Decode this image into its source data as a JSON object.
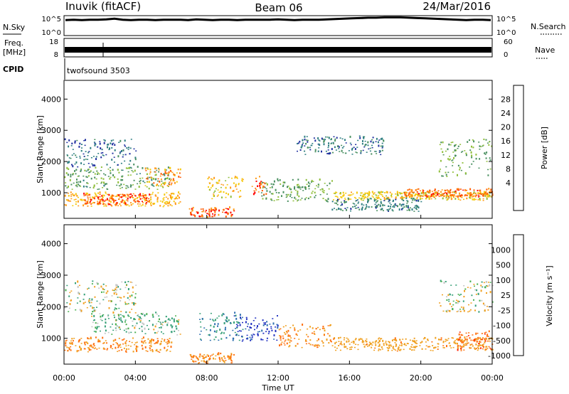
{
  "header": {
    "station": "Inuvik (fitACF)",
    "beam": "Beam 06",
    "date": "24/Mar/2016"
  },
  "nsky_panel": {
    "label": "N.Sky",
    "right_label": "N.Search",
    "left_ticks": [
      "10^5",
      "10^0"
    ],
    "right_ticks": [
      "10^5",
      "10^0"
    ],
    "trace_values": [
      4.4,
      4.5,
      4.4,
      4.5,
      4.5,
      4.6,
      4.8,
      4.5,
      4.4,
      4.5,
      4.5,
      4.4,
      4.5,
      4.5,
      4.5,
      4.4,
      4.6,
      4.5,
      4.4,
      4.5,
      4.5,
      4.4,
      4.5,
      4.5,
      4.5,
      4.5,
      4.6,
      4.5,
      4.4,
      4.5,
      4.5,
      4.5,
      4.6,
      4.7,
      4.8,
      4.9,
      5.0,
      5.1,
      5.1,
      5.2,
      5.2,
      5.2,
      5.1,
      5.0,
      4.9,
      4.8,
      4.7,
      4.6,
      4.5,
      4.4,
      4.5,
      4.5,
      4.4
    ]
  },
  "freq_panel": {
    "label": "Freq.",
    "unit": "[MHz]",
    "right_label": "Nave",
    "left_ticks": [
      "18",
      "8"
    ],
    "right_ticks": [
      "60",
      "0"
    ]
  },
  "cpid_panel": {
    "label": "CPID",
    "value": "twofsound 3503"
  },
  "power_panel": {
    "ylabel": "Slant Range [km]",
    "colorbar_label": "Power [dB]",
    "colorbar_ticks": [
      "28",
      "24",
      "20",
      "16",
      "12",
      "8",
      "4"
    ],
    "colorbar_colors": [
      "#ff0000",
      "#ff5a00",
      "#ff9a1a",
      "#f5c80a",
      "#8fbe3a",
      "#4a9060",
      "#2e7e82",
      "#2030a0",
      "#0000ff"
    ]
  },
  "velocity_panel": {
    "ylabel": "Slant Range [km]",
    "colorbar_label": "Velocity [m s⁻¹]",
    "colorbar_ticks": [
      "1000",
      "500",
      "100",
      "25",
      "-25",
      "-100",
      "-500",
      "-1000"
    ],
    "colorbar_colors": [
      "#2030c0",
      "#2f70b0",
      "#36a077",
      "#4ab050",
      "#c4c4c4",
      "#f0a020",
      "#ff7010",
      "#ff2000"
    ]
  },
  "xaxis": {
    "label": "Time UT",
    "ticks": [
      "00:00",
      "04:00",
      "08:00",
      "12:00",
      "16:00",
      "20:00",
      "00:00"
    ]
  },
  "chart_data": {
    "type": "heatmap",
    "x_range_hours": [
      0,
      24
    ],
    "y_range_km": [
      180,
      4600
    ],
    "y_ticks": [
      1000,
      2000,
      3000,
      4000
    ],
    "power_blobs": [
      {
        "t0": 0.0,
        "t1": 6.5,
        "r0": 550,
        "r1": 1000,
        "dB": 22
      },
      {
        "t0": 1.0,
        "t1": 4.8,
        "r0": 600,
        "r1": 950,
        "dB": 28
      },
      {
        "t0": 0.0,
        "t1": 6.0,
        "r0": 1100,
        "r1": 1800,
        "dB": 13
      },
      {
        "t0": 0.0,
        "t1": 4.0,
        "r0": 1800,
        "r1": 2700,
        "dB": 7
      },
      {
        "t0": 4.5,
        "t1": 6.5,
        "r0": 1200,
        "r1": 1800,
        "dB": 24
      },
      {
        "t0": 8.0,
        "t1": 10.0,
        "r0": 800,
        "r1": 1500,
        "dB": 20
      },
      {
        "t0": 7.0,
        "t1": 9.5,
        "r0": 200,
        "r1": 500,
        "dB": 28
      },
      {
        "t0": 10.5,
        "t1": 11.3,
        "r0": 900,
        "r1": 1500,
        "dB": 28
      },
      {
        "t0": 11.0,
        "t1": 15.0,
        "r0": 700,
        "r1": 1400,
        "dB": 14
      },
      {
        "t0": 13.0,
        "t1": 18.0,
        "r0": 2200,
        "r1": 2800,
        "dB": 8
      },
      {
        "t0": 15.0,
        "t1": 24.0,
        "r0": 750,
        "r1": 1000,
        "dB": 20
      },
      {
        "t0": 19.0,
        "t1": 24.0,
        "r0": 850,
        "r1": 1100,
        "dB": 27
      },
      {
        "t0": 21.0,
        "t1": 24.0,
        "r0": 1500,
        "r1": 2700,
        "dB": 14
      },
      {
        "t0": 15.0,
        "t1": 20.0,
        "r0": 400,
        "r1": 800,
        "dB": 9
      }
    ],
    "velocity_blobs": [
      {
        "t0": 0.0,
        "t1": 6.0,
        "r0": 550,
        "r1": 1000,
        "v": -300
      },
      {
        "t0": 0.0,
        "t1": 4.0,
        "r0": 1800,
        "r1": 2800,
        "v": 0
      },
      {
        "t0": 1.5,
        "t1": 6.5,
        "r0": 1100,
        "r1": 1800,
        "v": 60
      },
      {
        "t0": 7.5,
        "t1": 10.0,
        "r0": 900,
        "r1": 1800,
        "v": 300
      },
      {
        "t0": 9.5,
        "t1": 12.0,
        "r0": 900,
        "r1": 1700,
        "v": 800
      },
      {
        "t0": 12.0,
        "t1": 15.0,
        "r0": 700,
        "r1": 1400,
        "v": -300
      },
      {
        "t0": 15.0,
        "t1": 24.0,
        "r0": 600,
        "r1": 1000,
        "v": -200
      },
      {
        "t0": 21.0,
        "t1": 24.0,
        "r0": 1800,
        "r1": 2800,
        "v": 0
      },
      {
        "t0": 22.0,
        "t1": 24.0,
        "r0": 600,
        "r1": 1200,
        "v": -700
      },
      {
        "t0": 7.0,
        "t1": 9.5,
        "r0": 200,
        "r1": 500,
        "v": -300
      }
    ]
  }
}
